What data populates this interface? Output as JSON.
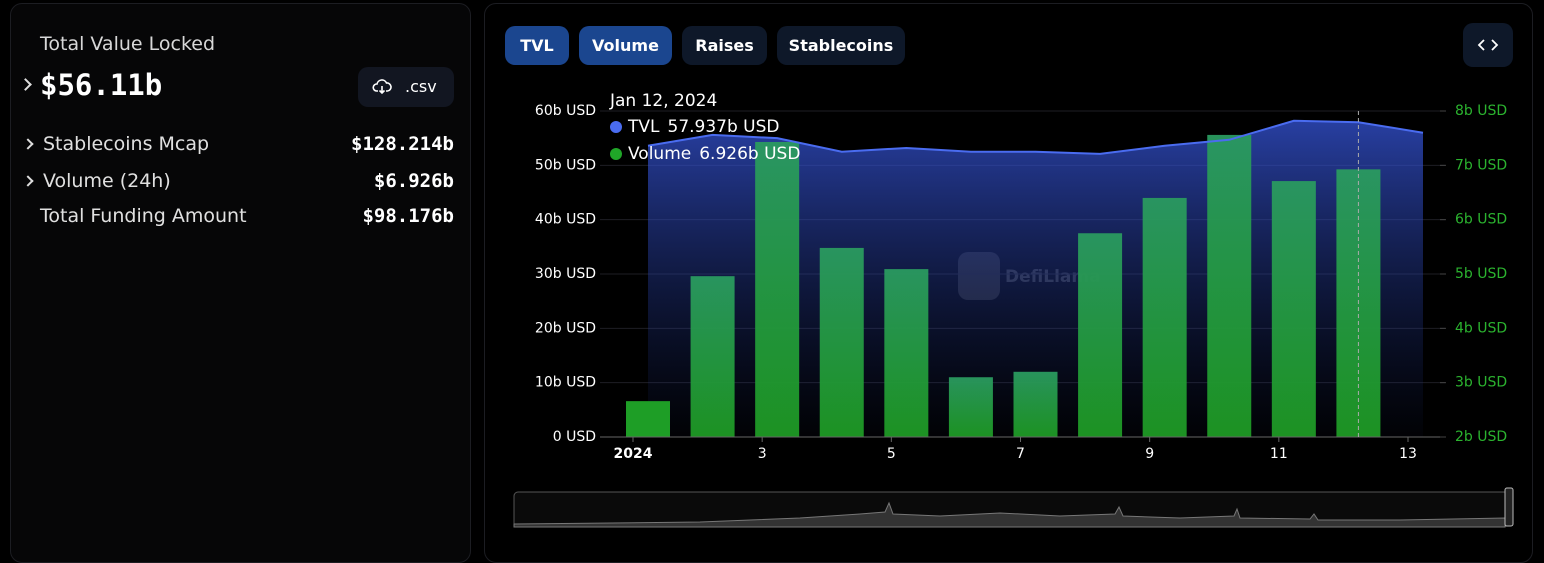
{
  "panel": {
    "title": "Total Value Locked",
    "value": "$56.11b",
    "csv": ".csv",
    "rows": [
      {
        "label": "Stablecoins Mcap",
        "value": "$128.214b"
      },
      {
        "label": "Volume (24h)",
        "value": "$6.926b"
      },
      {
        "label": "Total Funding Amount",
        "value": "$98.176b"
      }
    ]
  },
  "tabs": [
    "TVL",
    "Volume",
    "Raises",
    "Stablecoins"
  ],
  "chart_data": {
    "type": "bar-line",
    "x": [
      1,
      2,
      3,
      4,
      5,
      6,
      7,
      8,
      9,
      10,
      11,
      12,
      13
    ],
    "xlim": [
      1,
      13
    ],
    "xticks": [
      {
        "value": 1,
        "label": "2024"
      },
      3,
      5,
      7,
      9,
      11,
      13
    ],
    "ylim": [
      0,
      60
    ],
    "yticks": [
      {
        "value": 0,
        "label": "0 USD"
      },
      {
        "value": 10,
        "label": "10b USD"
      },
      {
        "value": 20,
        "label": "20b USD"
      },
      {
        "value": 30,
        "label": "30b USD"
      },
      {
        "value": 40,
        "label": "40b USD"
      },
      {
        "value": 50,
        "label": "50b USD"
      },
      {
        "value": 60,
        "label": "60b USD"
      }
    ],
    "y2lim": [
      2,
      8
    ],
    "y2ticks": [
      {
        "value": 2,
        "label": "2b USD"
      },
      {
        "value": 3,
        "label": "3b USD"
      },
      {
        "value": 4,
        "label": "4b USD"
      },
      {
        "value": 5,
        "label": "5b USD"
      },
      {
        "value": 6,
        "label": "6b USD"
      },
      {
        "value": 7,
        "label": "7b USD"
      },
      {
        "value": 8,
        "label": "8b USD"
      }
    ],
    "grid": true,
    "watermark": "DefiLlama",
    "series": [
      {
        "name": "TVL",
        "color": "#4a6cf0",
        "style": "area",
        "values": [
          53.6,
          55.6,
          55.0,
          52.5,
          53.2,
          52.5,
          52.5,
          52.1,
          53.6,
          54.7,
          58.2,
          57.937,
          56.0
        ]
      },
      {
        "name": "Volume",
        "color": "#20a628",
        "style": "bar",
        "axis": "y2",
        "values": [
          2.66,
          4.96,
          7.43,
          5.48,
          5.09,
          3.1,
          3.2,
          5.75,
          6.4,
          7.56,
          6.71,
          6.926,
          null
        ]
      }
    ],
    "tooltip": {
      "date": "Jan 12, 2024",
      "tvl": "57.937b USD",
      "volume": "6.926b USD",
      "index": 11
    }
  }
}
